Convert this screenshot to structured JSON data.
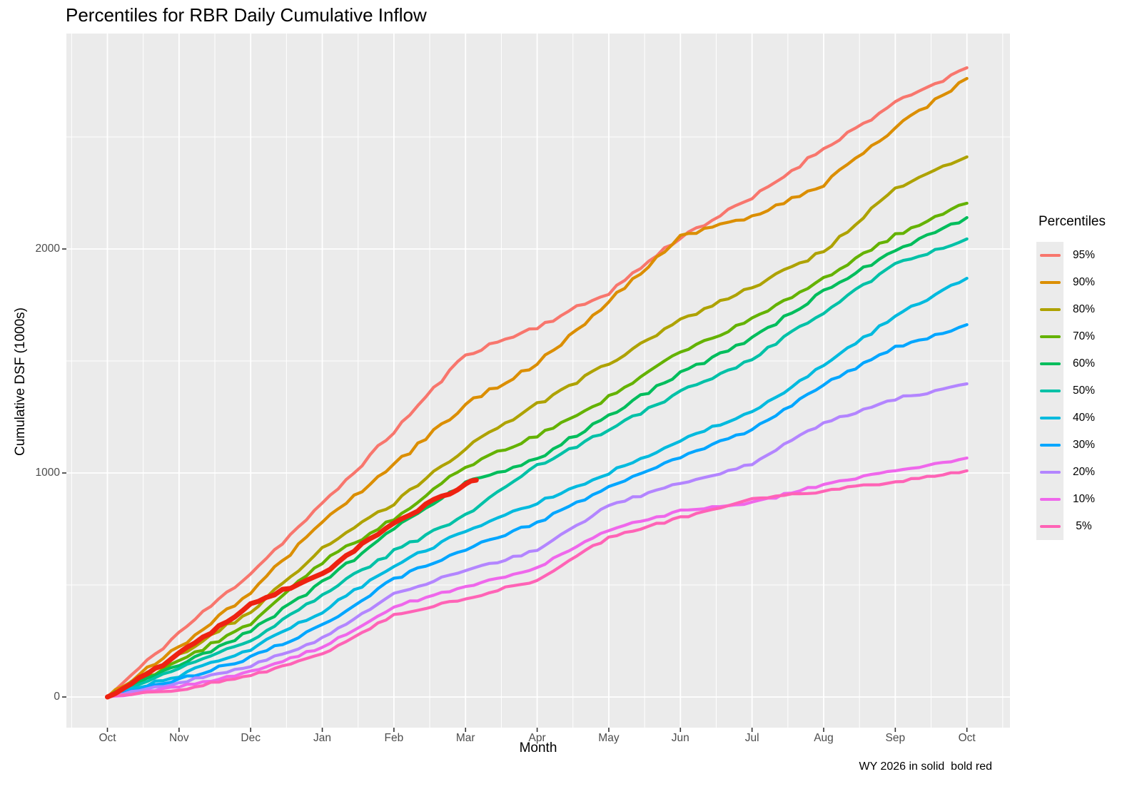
{
  "chart_data": {
    "type": "line",
    "title": "Percentiles for RBR Daily Cumulative Inflow",
    "xlabel": "Month",
    "ylabel": "Cumulative DSF (1000s)",
    "annotation": "WY 2026 in solid  bold red",
    "panel_bg": "#EBEBEB",
    "grid_color": "#FFFFFF",
    "tick_label_color": "#4D4D4D",
    "x_tick_labels": [
      "Oct",
      "Nov",
      "Dec",
      "Jan",
      "Feb",
      "Mar",
      "Apr",
      "May",
      "Jun",
      "Jul",
      "Aug",
      "Sep",
      "Oct"
    ],
    "y_ticks": [
      {
        "label": "0",
        "value": 0
      },
      {
        "label": "1000",
        "value": 1000
      },
      {
        "label": "2000",
        "value": 2000
      }
    ],
    "y_minor": [
      500,
      1500,
      2500
    ],
    "ylim": [
      -140,
      2960
    ],
    "legend": {
      "title": "Percentiles",
      "position": "right"
    },
    "series": [
      {
        "label": "95%",
        "color": "#F8766D",
        "values": [
          0,
          287,
          554,
          860,
          1185,
          1529,
          1652,
          1806,
          2054,
          2226,
          2450,
          2650,
          2809
        ]
      },
      {
        "label": "90%",
        "color": "#DB8E00",
        "values": [
          0,
          223,
          468,
          780,
          1035,
          1306,
          1487,
          1764,
          2060,
          2140,
          2290,
          2540,
          2761
        ]
      },
      {
        "label": "80%",
        "color": "#AEA200",
        "values": [
          0,
          188,
          382,
          660,
          866,
          1111,
          1306,
          1487,
          1685,
          1828,
          1990,
          2270,
          2411
        ]
      },
      {
        "label": "70%",
        "color": "#64B200",
        "values": [
          0,
          159,
          331,
          602,
          796,
          1030,
          1169,
          1338,
          1541,
          1685,
          1869,
          2060,
          2204
        ]
      },
      {
        "label": "60%",
        "color": "#00BD5C",
        "values": [
          0,
          140,
          293,
          510,
          749,
          955,
          1063,
          1258,
          1446,
          1599,
          1810,
          1996,
          2140
        ]
      },
      {
        "label": "50%",
        "color": "#00C1A7",
        "values": [
          0,
          124,
          252,
          458,
          650,
          810,
          1032,
          1194,
          1360,
          1510,
          1717,
          1933,
          2045
        ]
      },
      {
        "label": "40%",
        "color": "#00BADE",
        "values": [
          0,
          96,
          213,
          382,
          586,
          740,
          866,
          1000,
          1146,
          1270,
          1480,
          1700,
          1869
        ]
      },
      {
        "label": "30%",
        "color": "#00A6FF",
        "values": [
          0,
          80,
          175,
          318,
          526,
          660,
          777,
          940,
          1073,
          1190,
          1398,
          1560,
          1662
        ]
      },
      {
        "label": "20%",
        "color": "#B385FF",
        "values": [
          0,
          61,
          140,
          261,
          462,
          565,
          653,
          857,
          952,
          1041,
          1226,
          1330,
          1398
        ]
      },
      {
        "label": "10%",
        "color": "#EF67EB",
        "values": [
          0,
          45,
          111,
          223,
          404,
          490,
          580,
          745,
          830,
          865,
          950,
          1010,
          1067
        ]
      },
      {
        "label": " 5%",
        "color": "#FF63B6",
        "values": [
          0,
          32,
          96,
          188,
          366,
          440,
          522,
          713,
          800,
          880,
          920,
          960,
          1010
        ]
      }
    ],
    "highlight": {
      "label": "WY 2026",
      "color": "#EE2211",
      "months": [
        0,
        1,
        2,
        3,
        4,
        5,
        5.15
      ],
      "values": [
        0,
        190,
        414,
        552,
        780,
        950,
        968
      ]
    }
  }
}
